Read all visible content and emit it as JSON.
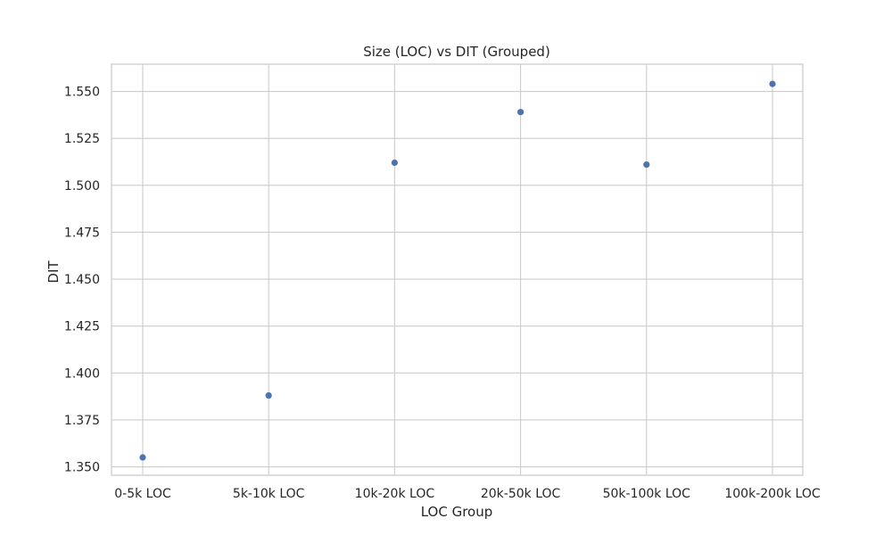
{
  "chart_data": {
    "type": "scatter",
    "title": "Size (LOC) vs DIT (Grouped)",
    "xlabel": "LOC Group",
    "ylabel": "DIT",
    "categories": [
      "0-5k LOC",
      "5k-10k LOC",
      "10k-20k LOC",
      "20k-50k LOC",
      "50k-100k LOC",
      "100k-200k LOC"
    ],
    "values": [
      1.355,
      1.388,
      1.512,
      1.539,
      1.511,
      1.554
    ],
    "yticks": [
      "1.350",
      "1.375",
      "1.400",
      "1.425",
      "1.450",
      "1.475",
      "1.500",
      "1.525",
      "1.550"
    ],
    "ylim": [
      1.3455,
      1.5645
    ],
    "grid": true,
    "point_color": "#4c72b0"
  }
}
